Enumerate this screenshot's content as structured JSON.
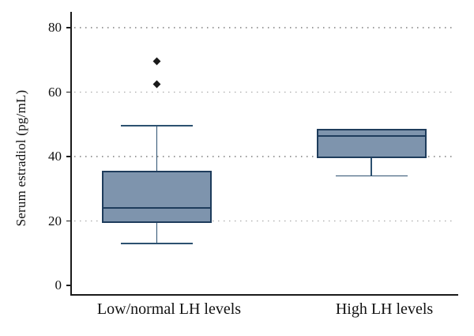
{
  "chart_data": {
    "type": "box",
    "title": "",
    "ylabel": "Serum estradiol (pg/mL)",
    "xlabel": "",
    "categories": [
      "Low/normal LH levels",
      "High LH levels"
    ],
    "yticks": [
      0,
      20,
      40,
      60,
      80
    ],
    "ylim": [
      0,
      80
    ],
    "grid": "horizontal dotted gridlines at 20, 40, 60, 80",
    "legend": "none",
    "outlier_marker": "diamond",
    "series": [
      {
        "name": "Low/normal LH levels",
        "min": 13,
        "q1": 19.5,
        "median": 24,
        "q3": 35.5,
        "max": 49.5,
        "outliers": [
          62.5,
          69.5
        ]
      },
      {
        "name": "High LH levels",
        "min": 34,
        "q1": 39.5,
        "median": 46.5,
        "q3": 48.5,
        "max": 48.5,
        "outliers": []
      }
    ],
    "colors": {
      "box_fill": "#7e94ad",
      "box_border": "#1e3c5c",
      "median": "#1e3c5c",
      "whisker": "#2c5170",
      "outlier": "#1a1a1a",
      "axis": "#1a1a1a",
      "gridline": "#9c9c9c",
      "background": "#ffffff",
      "text": "#111111"
    }
  }
}
